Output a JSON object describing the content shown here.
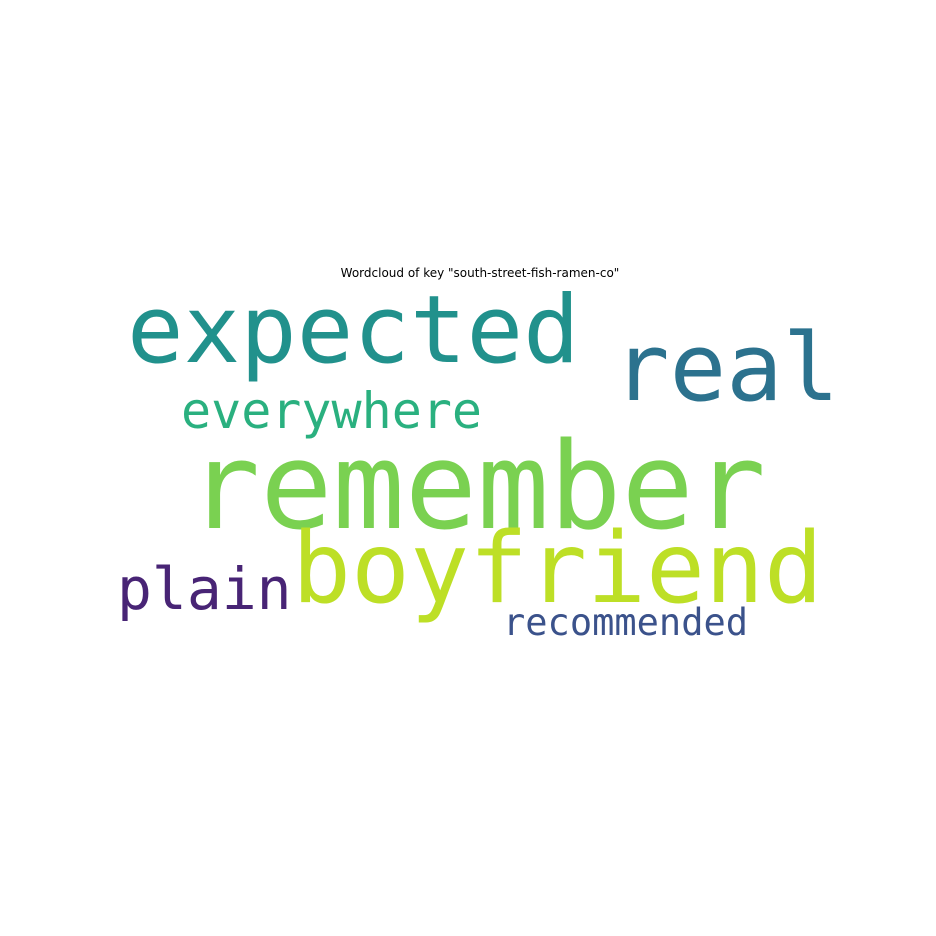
{
  "chart_data": {
    "type": "wordcloud",
    "title": "Wordcloud of key \"south-street-fish-ramen-co\"",
    "words": [
      {
        "text": "remember",
        "color": "#7ad151"
      },
      {
        "text": "boyfriend",
        "color": "#bddf26"
      },
      {
        "text": "expected",
        "color": "#21918c"
      },
      {
        "text": "real",
        "color": "#2c728e"
      },
      {
        "text": "everywhere",
        "color": "#2ab07f"
      },
      {
        "text": "plain",
        "color": "#482475"
      },
      {
        "text": "recommended",
        "color": "#3b528b"
      }
    ]
  }
}
